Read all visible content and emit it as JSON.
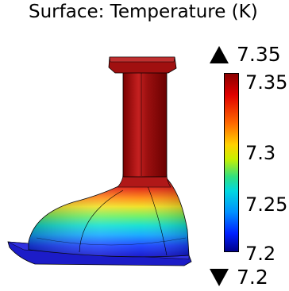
{
  "title": "Surface: Temperature (K)",
  "max_marker": "7.35",
  "min_marker": "7.2",
  "colorbar": {
    "labels": [
      "7.35",
      "7.3",
      "7.25",
      "7.2"
    ],
    "colors": {
      "top": "#8b0000",
      "upper": "#ff6a00",
      "middle": "#c8f000",
      "lower": "#0090ff",
      "bottom": "#00008a"
    }
  }
}
